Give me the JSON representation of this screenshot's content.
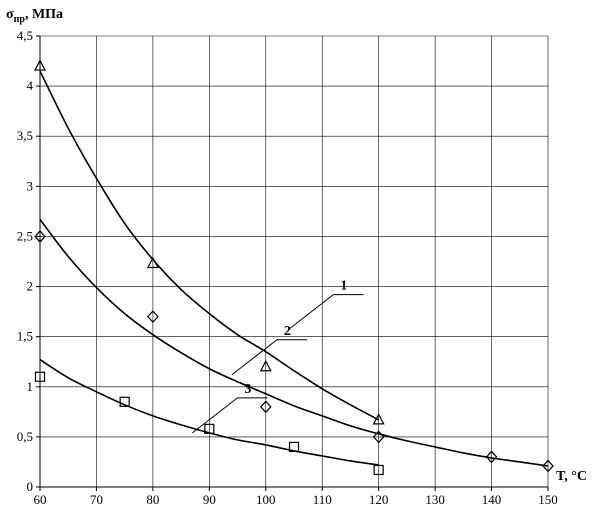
{
  "chart_data": {
    "type": "scatter",
    "title": "",
    "ylabel_main": "σ",
    "ylabel_sub": "пр",
    "ylabel_unit": ", МПа",
    "xlabel": "T, °C",
    "xlim": [
      60,
      150
    ],
    "ylim": [
      0,
      4.5
    ],
    "x_ticks": [
      60,
      70,
      80,
      90,
      100,
      110,
      120,
      130,
      140,
      150
    ],
    "x_tick_labels": [
      "60",
      "70",
      "80",
      "90",
      "100",
      "110",
      "120",
      "130",
      "140",
      "150"
    ],
    "y_ticks": [
      0,
      0.5,
      1,
      1.5,
      2,
      2.5,
      3,
      3.5,
      4,
      4.5
    ],
    "y_tick_labels": [
      "0",
      "0,5",
      "1",
      "1,5",
      "2",
      "2,5",
      "3",
      "3,5",
      "4",
      "4,5"
    ],
    "grid": true,
    "series": [
      {
        "name": "1",
        "marker": "triangle",
        "points": [
          [
            60,
            4.2
          ],
          [
            80,
            2.23
          ],
          [
            100,
            1.2
          ],
          [
            120,
            0.67
          ]
        ],
        "fit": {
          "x": [
            60,
            65,
            70,
            75,
            80,
            85,
            90,
            95,
            100,
            105,
            110,
            115,
            120
          ],
          "y": [
            4.15,
            3.58,
            3.08,
            2.63,
            2.27,
            1.97,
            1.73,
            1.52,
            1.35,
            1.16,
            0.98,
            0.82,
            0.67
          ]
        }
      },
      {
        "name": "2",
        "marker": "diamond",
        "points": [
          [
            60,
            2.5
          ],
          [
            80,
            1.7
          ],
          [
            100,
            0.8
          ],
          [
            120,
            0.5
          ],
          [
            140,
            0.3
          ],
          [
            150,
            0.21
          ]
        ],
        "fit": {
          "x": [
            60,
            65,
            70,
            75,
            80,
            85,
            90,
            95,
            100,
            105,
            110,
            115,
            120,
            125,
            130,
            135,
            140,
            145,
            150
          ],
          "y": [
            2.67,
            2.3,
            1.99,
            1.73,
            1.52,
            1.34,
            1.18,
            1.05,
            0.93,
            0.81,
            0.71,
            0.61,
            0.53,
            0.46,
            0.4,
            0.34,
            0.29,
            0.25,
            0.21
          ]
        }
      },
      {
        "name": "3",
        "marker": "square",
        "points": [
          [
            60,
            1.1
          ],
          [
            75,
            0.85
          ],
          [
            90,
            0.58
          ],
          [
            105,
            0.4
          ],
          [
            120,
            0.17
          ]
        ],
        "fit": {
          "x": [
            60,
            65,
            70,
            75,
            80,
            85,
            90,
            95,
            100,
            105,
            110,
            115,
            120
          ],
          "y": [
            1.27,
            1.09,
            0.95,
            0.82,
            0.71,
            0.62,
            0.54,
            0.47,
            0.42,
            0.36,
            0.31,
            0.26,
            0.22
          ]
        }
      }
    ],
    "curve_labels": [
      {
        "text": "1",
        "anchor_x": 104,
        "anchor_y": 1.57
      },
      {
        "text": "2",
        "anchor_x": 94,
        "anchor_y": 1.12
      },
      {
        "text": "3",
        "anchor_x": 87,
        "anchor_y": 0.54
      }
    ]
  }
}
